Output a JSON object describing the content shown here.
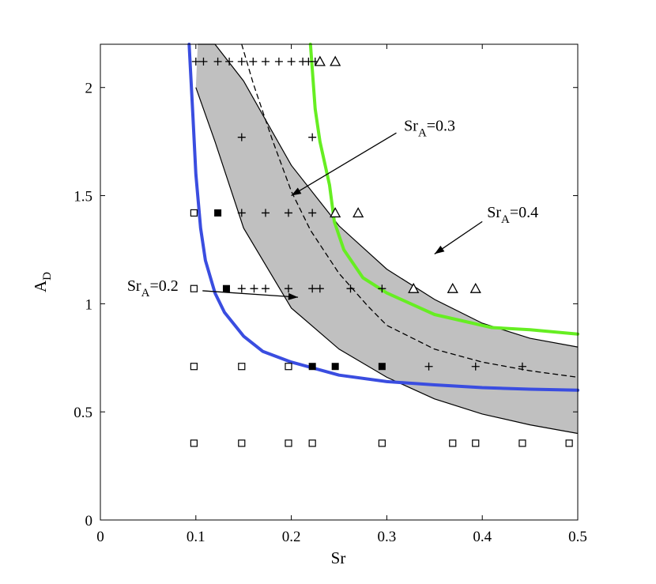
{
  "chart_data": {
    "type": "scatter",
    "title": "",
    "xlabel": "Sr",
    "ylabel": {
      "main": "A",
      "sub": "D"
    },
    "xlim": [
      0,
      0.5
    ],
    "ylim": [
      0,
      2.2
    ],
    "xticks": [
      "0",
      "0.1",
      "0.2",
      "0.3",
      "0.4",
      "0.5"
    ],
    "yticks": [
      "0",
      "0.5",
      "1",
      "1.5",
      "2"
    ],
    "grid": false,
    "shaded_band": {
      "fill": "#c0c0c0",
      "upper": [
        [
          0.102,
          2.2
        ],
        [
          0.12,
          2.2
        ],
        [
          0.15,
          2.03
        ],
        [
          0.2,
          1.64
        ],
        [
          0.25,
          1.36
        ],
        [
          0.3,
          1.16
        ],
        [
          0.35,
          1.02
        ],
        [
          0.4,
          0.91
        ],
        [
          0.45,
          0.84
        ],
        [
          0.5,
          0.8
        ]
      ],
      "lower": [
        [
          0.1,
          2.0
        ],
        [
          0.12,
          1.75
        ],
        [
          0.15,
          1.35
        ],
        [
          0.2,
          0.98
        ],
        [
          0.25,
          0.79
        ],
        [
          0.3,
          0.66
        ],
        [
          0.35,
          0.56
        ],
        [
          0.4,
          0.49
        ],
        [
          0.45,
          0.44
        ],
        [
          0.5,
          0.4
        ]
      ]
    },
    "series": [
      {
        "style": "dashed",
        "color": "#000000",
        "points": [
          [
            0.148,
            2.2
          ],
          [
            0.16,
            2.02
          ],
          [
            0.18,
            1.76
          ],
          [
            0.2,
            1.52
          ],
          [
            0.22,
            1.34
          ],
          [
            0.25,
            1.14
          ],
          [
            0.28,
            0.99
          ],
          [
            0.3,
            0.9
          ],
          [
            0.35,
            0.79
          ],
          [
            0.4,
            0.73
          ],
          [
            0.45,
            0.69
          ],
          [
            0.5,
            0.66
          ]
        ]
      },
      {
        "style": "solid",
        "color": "#3a4de0",
        "points": [
          [
            0.093,
            2.2
          ],
          [
            0.097,
            1.86
          ],
          [
            0.1,
            1.6
          ],
          [
            0.105,
            1.35
          ],
          [
            0.11,
            1.2
          ],
          [
            0.12,
            1.05
          ],
          [
            0.13,
            0.96
          ],
          [
            0.15,
            0.85
          ],
          [
            0.17,
            0.78
          ],
          [
            0.2,
            0.73
          ],
          [
            0.25,
            0.67
          ],
          [
            0.3,
            0.64
          ],
          [
            0.35,
            0.625
          ],
          [
            0.4,
            0.612
          ],
          [
            0.45,
            0.605
          ],
          [
            0.5,
            0.6
          ]
        ]
      },
      {
        "style": "solid",
        "color": "#66ee22",
        "points": [
          [
            0.22,
            2.2
          ],
          [
            0.225,
            1.9
          ],
          [
            0.23,
            1.75
          ],
          [
            0.24,
            1.55
          ],
          [
            0.245,
            1.38
          ],
          [
            0.255,
            1.25
          ],
          [
            0.275,
            1.12
          ],
          [
            0.3,
            1.05
          ],
          [
            0.35,
            0.95
          ],
          [
            0.41,
            0.89
          ],
          [
            0.45,
            0.88
          ],
          [
            0.5,
            0.86
          ]
        ]
      }
    ],
    "markers": {
      "plus": [
        [
          0.1,
          2.12
        ],
        [
          0.108,
          2.12
        ],
        [
          0.123,
          2.12
        ],
        [
          0.135,
          2.12
        ],
        [
          0.148,
          2.12
        ],
        [
          0.16,
          2.12
        ],
        [
          0.173,
          2.12
        ],
        [
          0.187,
          2.12
        ],
        [
          0.2,
          2.12
        ],
        [
          0.212,
          2.12
        ],
        [
          0.218,
          2.12
        ],
        [
          0.225,
          2.12
        ],
        [
          0.148,
          1.77
        ],
        [
          0.222,
          1.77
        ],
        [
          0.148,
          1.42
        ],
        [
          0.173,
          1.42
        ],
        [
          0.197,
          1.42
        ],
        [
          0.222,
          1.42
        ],
        [
          0.148,
          1.07
        ],
        [
          0.161,
          1.07
        ],
        [
          0.173,
          1.07
        ],
        [
          0.197,
          1.07
        ],
        [
          0.222,
          1.07
        ],
        [
          0.23,
          1.07
        ],
        [
          0.262,
          1.07
        ],
        [
          0.295,
          1.07
        ],
        [
          0.344,
          0.71
        ],
        [
          0.393,
          0.71
        ],
        [
          0.442,
          0.71
        ]
      ],
      "triangle": [
        [
          0.23,
          2.12
        ],
        [
          0.246,
          2.12
        ],
        [
          0.246,
          1.42
        ],
        [
          0.27,
          1.42
        ],
        [
          0.328,
          1.07
        ],
        [
          0.369,
          1.07
        ],
        [
          0.393,
          1.07
        ]
      ],
      "filled_square": [
        [
          0.123,
          1.42
        ],
        [
          0.132,
          1.07
        ],
        [
          0.222,
          0.71
        ],
        [
          0.246,
          0.71
        ],
        [
          0.295,
          0.71
        ]
      ],
      "open_square": [
        [
          0.098,
          1.42
        ],
        [
          0.098,
          1.07
        ],
        [
          0.098,
          0.71
        ],
        [
          0.148,
          0.71
        ],
        [
          0.197,
          0.71
        ],
        [
          0.098,
          0.355
        ],
        [
          0.148,
          0.355
        ],
        [
          0.197,
          0.355
        ],
        [
          0.222,
          0.355
        ],
        [
          0.295,
          0.355
        ],
        [
          0.369,
          0.355
        ],
        [
          0.393,
          0.355
        ],
        [
          0.442,
          0.355
        ],
        [
          0.491,
          0.355
        ]
      ]
    },
    "annotations": [
      {
        "main": "Sr",
        "sub": "A",
        "tail": "=0.3",
        "label_at": [
          0.318,
          1.8
        ],
        "arrow_from": [
          0.31,
          1.79
        ],
        "arrow_to": [
          0.2,
          1.5
        ]
      },
      {
        "main": "Sr",
        "sub": "A",
        "tail": "=0.4",
        "label_at": [
          0.405,
          1.4
        ],
        "arrow_from": [
          0.4,
          1.38
        ],
        "arrow_to": [
          0.35,
          1.23
        ]
      },
      {
        "main": "Sr",
        "sub": "A",
        "tail": "=0.2",
        "label_at": [
          0.028,
          1.06
        ],
        "arrow_from": [
          0.107,
          1.06
        ],
        "arrow_to": [
          0.207,
          1.03
        ]
      }
    ]
  }
}
